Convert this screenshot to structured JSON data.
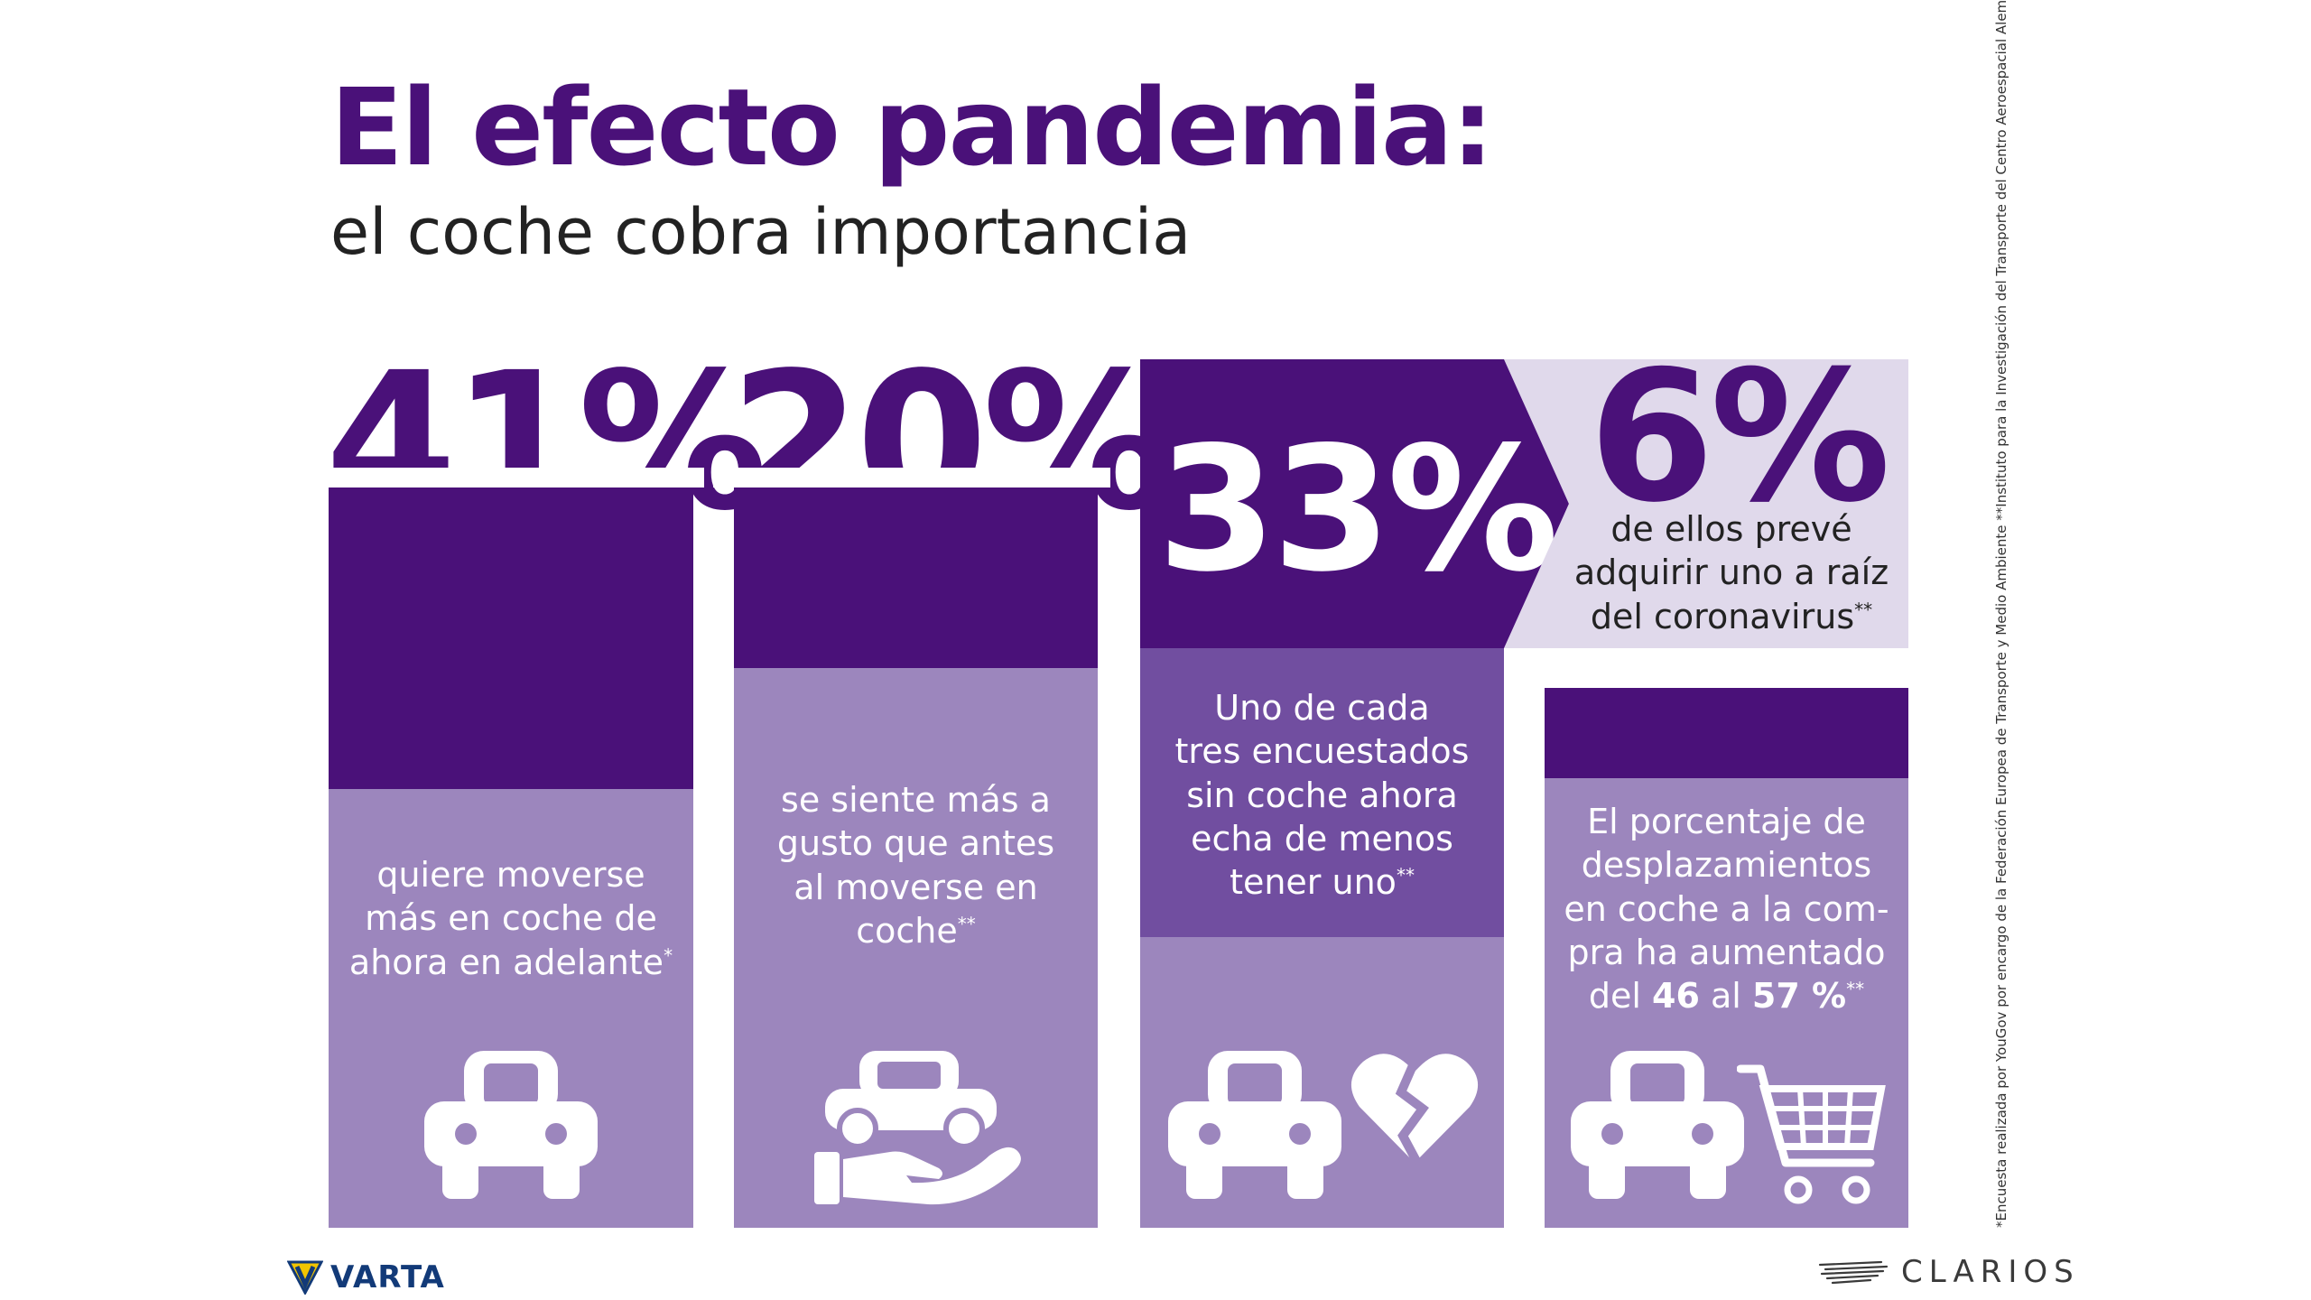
{
  "title": "El efecto pandemia:",
  "subtitle": "el coche cobra importancia",
  "chart_data": {
    "type": "infographic",
    "stats": [
      {
        "value": "41%",
        "percent": 41,
        "caption": "quiere moverse más en coche de ahora en adelante",
        "footnote_mark": "*",
        "icons": [
          "car-icon"
        ]
      },
      {
        "value": "20%",
        "percent": 20,
        "caption": "se siente más a gusto que antes al moverse en coche",
        "footnote_mark": "**",
        "icons": [
          "car-in-hand-icon"
        ]
      },
      {
        "value": "33%",
        "percent": 33,
        "caption": "Uno de cada tres encuestados sin coche ahora echa de menos tener uno",
        "footnote_mark": "**",
        "icons": [
          "car-icon",
          "broken-heart-icon"
        ]
      },
      {
        "value": "6%",
        "percent": 6,
        "caption": "de ellos prevé adquirir uno a raíz del coronavirus",
        "footnote_mark": "**"
      },
      {
        "caption_parts": [
          "El porcentaje de desplazamientos en coche a la compra ha aumentado del ",
          "46",
          " al ",
          "57 %"
        ],
        "footnote_mark": "**",
        "from_percent": 46,
        "to_percent": 57,
        "icons": [
          "car-icon",
          "shopping-cart-icon"
        ]
      }
    ]
  },
  "captions": {
    "c41_lines": [
      "quiere moverse",
      "más en coche de",
      "ahora en adelante"
    ],
    "c20_lines": [
      "se siente más a",
      "gusto que antes",
      "al moverse en",
      "coche"
    ],
    "c33_lines": [
      "Uno de cada",
      "tres encuestados",
      "sin coche ahora",
      "echa de menos",
      "tener uno"
    ],
    "c6_lines": [
      "de ellos prevé",
      "adquirir uno a raíz",
      "del coronavirus"
    ],
    "c46_lines": [
      "El porcentaje de",
      "desplazamientos",
      "en coche a la com-",
      "pra ha aumentado"
    ],
    "c46_last": {
      "pre": "del ",
      "from": "46",
      "mid": " al ",
      "to": "57 %"
    },
    "mark_single": "*",
    "mark_double": "**"
  },
  "footnote": "*Encuesta realizada por YouGov por encargo de la Federación Europea de Transporte y Medio Ambiente  **Instituto para la Investigación del Transporte del Centro Aeroespacial Alemán (DLR)",
  "logos": {
    "varta": "VARTA",
    "clarios": "CLARIOS"
  },
  "colors": {
    "dark": "#4a1179",
    "mid": "#714ea0",
    "light": "#9c86bd",
    "pale": "#e0d9eb",
    "white": "#ffffff"
  }
}
